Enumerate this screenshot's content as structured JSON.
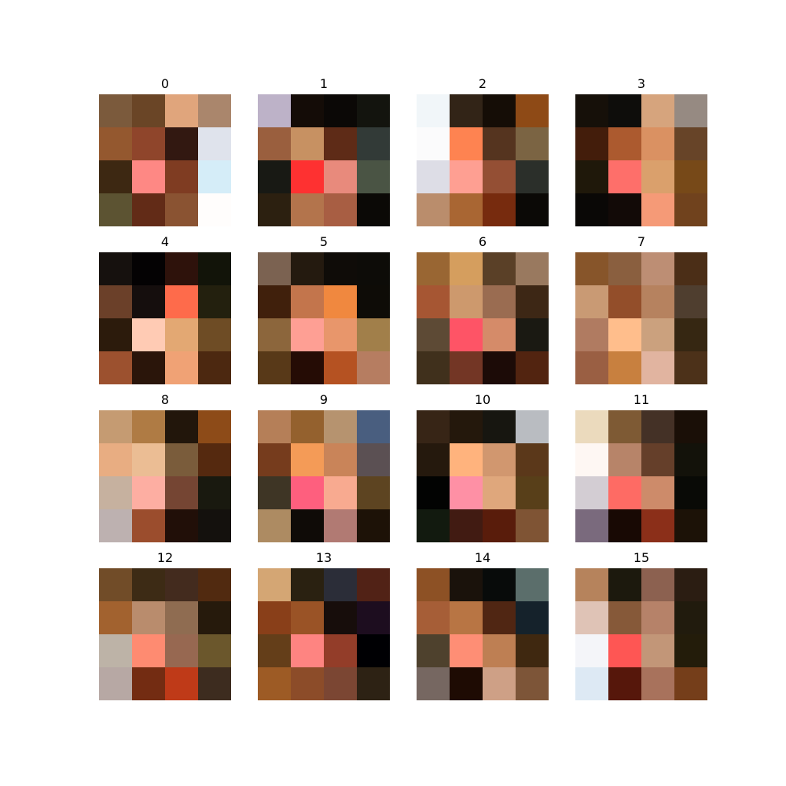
{
  "panels": [
    {
      "title": "0",
      "cells": [
        [
          "#7b5a3c",
          "#6a4526",
          "#e0a57c",
          "#aa866c"
        ],
        [
          "#94582f",
          "#8f452b",
          "#321811",
          "#dfe3ec"
        ],
        [
          "#3d2812",
          "#fe8884",
          "#7f3c22",
          "#d5edf8"
        ],
        [
          "#5c5332",
          "#622b17",
          "#8a5332",
          "#fffdfc"
        ]
      ]
    },
    {
      "title": "1",
      "cells": [
        [
          "#bdb2c8",
          "#140c07",
          "#0b0806",
          "#13140e"
        ],
        [
          "#9a5f3e",
          "#c79162",
          "#5e2b17",
          "#323a37"
        ],
        [
          "#181914",
          "#fe3131",
          "#e88a7c",
          "#4a5444"
        ],
        [
          "#2c2010",
          "#b3744c",
          "#a85e43",
          "#0b0906"
        ]
      ]
    },
    {
      "title": "2",
      "cells": [
        [
          "#f1f6f9",
          "#322417",
          "#150d06",
          "#8e4a16"
        ],
        [
          "#fbfbfc",
          "#fe8351",
          "#55341f",
          "#7b6443"
        ],
        [
          "#dddde6",
          "#fe9f92",
          "#944f34",
          "#2b2f2a"
        ],
        [
          "#ba8d6c",
          "#a96633",
          "#772b0e",
          "#0b0906"
        ]
      ]
    },
    {
      "title": "3",
      "cells": [
        [
          "#161009",
          "#0e0d0b",
          "#d6a47d",
          "#968a82"
        ],
        [
          "#431d0b",
          "#ac5a2f",
          "#da9162",
          "#674428"
        ],
        [
          "#1f180a",
          "#fe6f6a",
          "#daa06c",
          "#774918"
        ],
        [
          "#0a0806",
          "#120a07",
          "#f59a77",
          "#70421d"
        ]
      ]
    },
    {
      "title": "4",
      "cells": [
        [
          "#16110e",
          "#040203",
          "#2e120b",
          "#121409"
        ],
        [
          "#6b4029",
          "#150e0d",
          "#fe6b4b",
          "#23200e"
        ],
        [
          "#2c1b0c",
          "#ffcbb4",
          "#e3a873",
          "#6e4c25"
        ],
        [
          "#9c512f",
          "#2a150a",
          "#f0a275",
          "#4c2810"
        ]
      ]
    },
    {
      "title": "5",
      "cells": [
        [
          "#7b6251",
          "#241a0f",
          "#0f0c08",
          "#0d0c08"
        ],
        [
          "#40200c",
          "#c3754c",
          "#f0883f",
          "#0e0c07"
        ],
        [
          "#8c663c",
          "#fe9f94",
          "#e8966b",
          "#a17f4a"
        ],
        [
          "#583918",
          "#250c05",
          "#b55222",
          "#b67d61"
        ]
      ]
    },
    {
      "title": "6",
      "cells": [
        [
          "#996633",
          "#d59e5e",
          "#5a4027",
          "#99795f"
        ],
        [
          "#a65633",
          "#cd996d",
          "#9a6c51",
          "#3d2715"
        ],
        [
          "#5d4a35",
          "#fe5466",
          "#d58b69",
          "#1a1912"
        ],
        [
          "#40301c",
          "#733625",
          "#1c0b07",
          "#522410"
        ]
      ]
    },
    {
      "title": "7",
      "cells": [
        [
          "#87552a",
          "#8a5f3f",
          "#bd8e74",
          "#4b2e17"
        ],
        [
          "#c99a74",
          "#934e2a",
          "#b6825f",
          "#4f3e2f"
        ],
        [
          "#b07b61",
          "#ffbe8c",
          "#cba17e",
          "#362712"
        ],
        [
          "#9a5f43",
          "#c8803f",
          "#e1b4a0",
          "#4c3119"
        ]
      ]
    },
    {
      "title": "8",
      "cells": [
        [
          "#c59b72",
          "#af7b44",
          "#22160b",
          "#8d4b18"
        ],
        [
          "#e8ad82",
          "#ebbd94",
          "#7a5c3b",
          "#55290f"
        ],
        [
          "#c6b19f",
          "#fdaea2",
          "#754533",
          "#19190f"
        ],
        [
          "#bdb1b0",
          "#9b4d2d",
          "#210f08",
          "#14110d"
        ]
      ]
    },
    {
      "title": "9",
      "cells": [
        [
          "#b57f58",
          "#94612e",
          "#b6936f",
          "#495e7f"
        ],
        [
          "#763c1d",
          "#f49b57",
          "#c98459",
          "#5b5053"
        ],
        [
          "#3e3525",
          "#fe5f7e",
          "#f8aa90",
          "#5d4421"
        ],
        [
          "#ad8b62",
          "#0f0b07",
          "#b17a73",
          "#1d1207"
        ]
      ]
    },
    {
      "title": "10",
      "cells": [
        [
          "#372516",
          "#24180c",
          "#171610",
          "#b9bcc1"
        ],
        [
          "#25190d",
          "#ffb37d",
          "#d1976f",
          "#5b381a"
        ],
        [
          "#020302",
          "#fe90a5",
          "#dfa77c",
          "#583f19"
        ],
        [
          "#121a0f",
          "#411b12",
          "#591c0b",
          "#7f5434"
        ]
      ]
    },
    {
      "title": "11",
      "cells": [
        [
          "#ebdabd",
          "#7e5a34",
          "#443126",
          "#1a0f07"
        ],
        [
          "#fef7f3",
          "#b78469",
          "#653f2a",
          "#13120a"
        ],
        [
          "#d3cdd3",
          "#fe6b64",
          "#cd8b6a",
          "#090a06"
        ],
        [
          "#7a6a7d",
          "#180904",
          "#8b2f19",
          "#1c1207"
        ]
      ]
    },
    {
      "title": "12",
      "cells": [
        [
          "#714c28",
          "#3d2b15",
          "#432b1e",
          "#512a10"
        ],
        [
          "#a2622f",
          "#b98c6d",
          "#8f6c51",
          "#261a0c"
        ],
        [
          "#bdb3a7",
          "#fe8b71",
          "#976851",
          "#6b572c"
        ],
        [
          "#b7a8a4",
          "#732c12",
          "#bf3a18",
          "#3d2c1f"
        ]
      ]
    },
    {
      "title": "13",
      "cells": [
        [
          "#d4a674",
          "#2a2111",
          "#2b2d38",
          "#512216"
        ],
        [
          "#893f19",
          "#9a5326",
          "#170d0b",
          "#1d0d1f"
        ],
        [
          "#643e19",
          "#fe8481",
          "#933d29",
          "#000003"
        ],
        [
          "#9d5b25",
          "#8c4c29",
          "#7b4633",
          "#2d2214"
        ]
      ]
    },
    {
      "title": "14",
      "cells": [
        [
          "#8d5125",
          "#1a120b",
          "#080b0a",
          "#5b6e6b"
        ],
        [
          "#a65e37",
          "#b87544",
          "#502613",
          "#15222b"
        ],
        [
          "#4e412d",
          "#fe8e75",
          "#be7f53",
          "#3f2810"
        ],
        [
          "#766761",
          "#1e0b03",
          "#cea086",
          "#7d5538"
        ]
      ]
    },
    {
      "title": "15",
      "cells": [
        [
          "#b6835c",
          "#1c190d",
          "#8c6150",
          "#2b1d12"
        ],
        [
          "#dfc3b6",
          "#865939",
          "#b68269",
          "#211b0d"
        ],
        [
          "#f4f5f9",
          "#fe5654",
          "#c29678",
          "#231c0a"
        ],
        [
          "#dde9f4",
          "#56170b",
          "#a8725c",
          "#753e1a"
        ]
      ]
    }
  ]
}
